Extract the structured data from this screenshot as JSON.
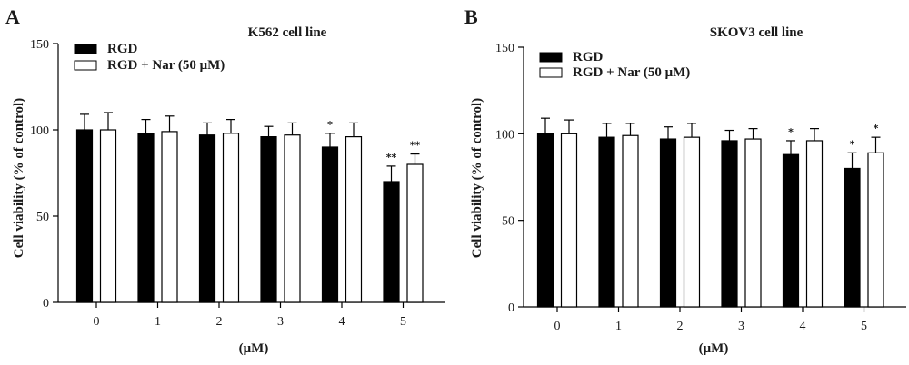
{
  "chart_data": [
    {
      "panel": "A",
      "type": "bar",
      "title": "K562 cell line",
      "xlabel": "(μM)",
      "ylabel": "Cell viability (% of control)",
      "ylim": [
        0,
        150
      ],
      "yticks": [
        0,
        50,
        100,
        150
      ],
      "categories": [
        "0",
        "1",
        "2",
        "3",
        "4",
        "5"
      ],
      "series": [
        {
          "name": "RGD",
          "color": "#000000",
          "values": [
            100,
            98,
            97,
            96,
            90,
            70
          ],
          "errors": [
            9,
            8,
            7,
            6,
            8,
            9
          ],
          "significance": [
            "",
            "",
            "",
            "",
            "*",
            "**"
          ]
        },
        {
          "name": "RGD + Nar (50 μM)",
          "color": "#ffffff",
          "values": [
            100,
            99,
            98,
            97,
            96,
            80
          ],
          "errors": [
            10,
            9,
            8,
            7,
            8,
            6
          ],
          "significance": [
            "",
            "",
            "",
            "",
            "",
            "**"
          ]
        }
      ]
    },
    {
      "panel": "B",
      "type": "bar",
      "title": "SKOV3 cell line",
      "xlabel": "(μM)",
      "ylabel": "Cell viability (% of control)",
      "ylim": [
        0,
        150
      ],
      "yticks": [
        0,
        50,
        100,
        150
      ],
      "categories": [
        "0",
        "1",
        "2",
        "3",
        "4",
        "5"
      ],
      "series": [
        {
          "name": "RGD",
          "color": "#000000",
          "values": [
            100,
            98,
            97,
            96,
            88,
            80
          ],
          "errors": [
            9,
            8,
            7,
            6,
            8,
            9
          ],
          "significance": [
            "",
            "",
            "",
            "",
            "*",
            "*"
          ]
        },
        {
          "name": "RGD + Nar (50 μM)",
          "color": "#ffffff",
          "values": [
            100,
            99,
            98,
            97,
            96,
            89
          ],
          "errors": [
            8,
            7,
            8,
            6,
            7,
            9
          ],
          "significance": [
            "",
            "",
            "",
            "",
            "",
            "*"
          ]
        }
      ]
    }
  ]
}
